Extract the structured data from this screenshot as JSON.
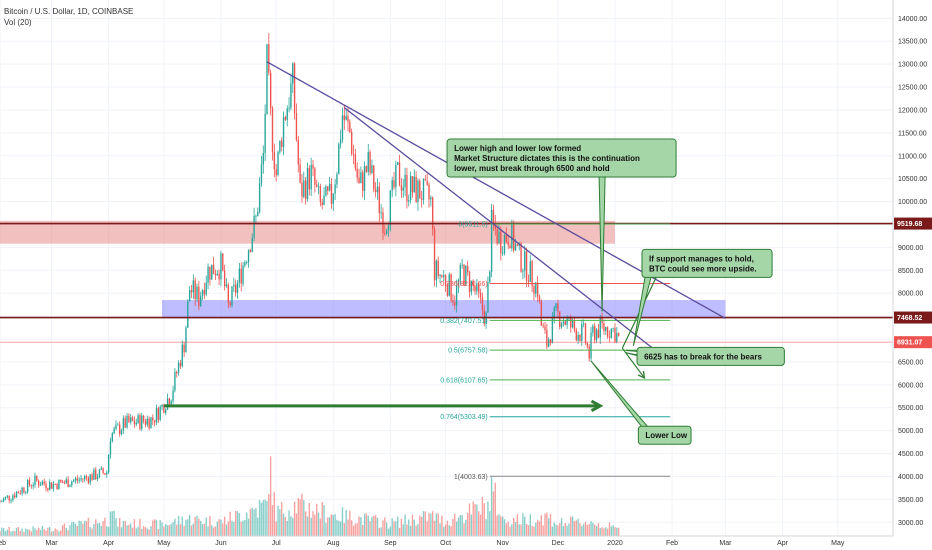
{
  "header": {
    "title": "Bitcoin / U.S. Dollar, 1D, COINBASE",
    "volume_label": "Vol (20)"
  },
  "colors": {
    "up": "#26a69a",
    "down": "#ef5350",
    "resistance_zone": "#e57373",
    "support_zone": "#7b7bff",
    "level_line": "#7b1a1a",
    "trendline": "#5b4a9e",
    "annotation_green": "#2e7d32",
    "note_fill": "#a5d6a7",
    "fib_line": "#4caf50",
    "fib_text": "#26a69a",
    "grid": "#f0f3fa"
  },
  "chart_data": {
    "type": "candlestick",
    "y_axis": {
      "range": [
        2700,
        14400
      ],
      "ticks": [
        3000,
        3500,
        4000,
        4500,
        5000,
        5500,
        6000,
        6500,
        7000,
        7500,
        8000,
        8500,
        9000,
        9500,
        10000,
        10500,
        11000,
        11500,
        12000,
        12500,
        13000,
        13500,
        14000
      ],
      "tick_labels": [
        "3000.00",
        "3500.00",
        "4000.00",
        "4500.00",
        "5000.00",
        "5500.00",
        "6000.00",
        "6500.00",
        "7000.00",
        "7500.00",
        "8000.00",
        "8500.00",
        "9000.00",
        "9500.00",
        "10000.00",
        "10500.00",
        "11000.00",
        "11500.00",
        "12000.00",
        "12500.00",
        "13000.00",
        "13500.00",
        "14000.00"
      ]
    },
    "x_axis": {
      "start": "2019-02-01",
      "end": "2020-05-31",
      "labels": [
        {
          "label": "Feb",
          "date": "2019-02-01"
        },
        {
          "label": "Mar",
          "date": "2019-03-01"
        },
        {
          "label": "Apr",
          "date": "2019-04-01"
        },
        {
          "label": "May",
          "date": "2019-05-01"
        },
        {
          "label": "Jun",
          "date": "2019-06-01"
        },
        {
          "label": "Jul",
          "date": "2019-07-01"
        },
        {
          "label": "Aug",
          "date": "2019-08-01"
        },
        {
          "label": "Sep",
          "date": "2019-09-01"
        },
        {
          "label": "Oct",
          "date": "2019-10-01"
        },
        {
          "label": "Nov",
          "date": "2019-11-01"
        },
        {
          "label": "Dec",
          "date": "2019-12-01"
        },
        {
          "label": "2020",
          "date": "2020-01-01"
        },
        {
          "label": "Feb",
          "date": "2020-02-01"
        },
        {
          "label": "Mar",
          "date": "2020-03-01"
        },
        {
          "label": "Apr",
          "date": "2020-04-01"
        },
        {
          "label": "May",
          "date": "2020-05-01"
        }
      ]
    },
    "price_path": [
      [
        "2019-02-01",
        3450
      ],
      [
        "2019-02-10",
        3650
      ],
      [
        "2019-02-20",
        3900
      ],
      [
        "2019-03-01",
        3820
      ],
      [
        "2019-03-15",
        3920
      ],
      [
        "2019-03-31",
        4100
      ],
      [
        "2019-04-02",
        4900
      ],
      [
        "2019-04-10",
        5150
      ],
      [
        "2019-04-25",
        5250
      ],
      [
        "2019-05-05",
        5800
      ],
      [
        "2019-05-12",
        6900
      ],
      [
        "2019-05-15",
        8100
      ],
      [
        "2019-05-20",
        7900
      ],
      [
        "2019-05-25",
        8500
      ],
      [
        "2019-06-01",
        8600
      ],
      [
        "2019-06-05",
        7700
      ],
      [
        "2019-06-10",
        8200
      ],
      [
        "2019-06-15",
        8900
      ],
      [
        "2019-06-20",
        9600
      ],
      [
        "2019-06-24",
        11000
      ],
      [
        "2019-06-26",
        13000
      ],
      [
        "2019-06-28",
        11800
      ],
      [
        "2019-07-01",
        10600
      ],
      [
        "2019-07-05",
        11800
      ],
      [
        "2019-07-10",
        12600
      ],
      [
        "2019-07-14",
        10200
      ],
      [
        "2019-07-20",
        10600
      ],
      [
        "2019-07-25",
        9900
      ],
      [
        "2019-07-31",
        10100
      ],
      [
        "2019-08-03",
        10800
      ],
      [
        "2019-08-06",
        11900
      ],
      [
        "2019-08-10",
        11500
      ],
      [
        "2019-08-15",
        10300
      ],
      [
        "2019-08-20",
        10800
      ],
      [
        "2019-08-29",
        9500
      ],
      [
        "2019-09-05",
        10600
      ],
      [
        "2019-09-10",
        10300
      ],
      [
        "2019-09-18",
        10200
      ],
      [
        "2019-09-23",
        10000
      ],
      [
        "2019-09-25",
        8500
      ],
      [
        "2019-10-01",
        8300
      ],
      [
        "2019-10-06",
        7900
      ],
      [
        "2019-10-10",
        8500
      ],
      [
        "2019-10-17",
        8050
      ],
      [
        "2019-10-23",
        7450
      ],
      [
        "2019-10-25",
        8700
      ],
      [
        "2019-10-26",
        9500
      ],
      [
        "2019-10-31",
        9150
      ],
      [
        "2019-11-05",
        9300
      ],
      [
        "2019-11-10",
        8800
      ],
      [
        "2019-11-15",
        8500
      ],
      [
        "2019-11-20",
        8100
      ],
      [
        "2019-11-22",
        7300
      ],
      [
        "2019-11-25",
        6900
      ],
      [
        "2019-11-30",
        7550
      ],
      [
        "2019-12-05",
        7400
      ],
      [
        "2019-12-10",
        7200
      ],
      [
        "2019-12-15",
        7100
      ],
      [
        "2019-12-18",
        6650
      ],
      [
        "2019-12-20",
        7150
      ],
      [
        "2019-12-25",
        7250
      ],
      [
        "2019-12-31",
        7200
      ],
      [
        "2020-01-01",
        7150
      ],
      [
        "2020-01-03",
        7000
      ]
    ],
    "volume_range": [
      0,
      25000
    ],
    "volume_path": [
      [
        "2019-02-01",
        2200
      ],
      [
        "2019-03-01",
        2500
      ],
      [
        "2019-04-01",
        5500
      ],
      [
        "2019-04-02",
        15000
      ],
      [
        "2019-04-05",
        4500
      ],
      [
        "2019-05-01",
        4000
      ],
      [
        "2019-05-13",
        6000
      ],
      [
        "2019-06-01",
        5000
      ],
      [
        "2019-06-26",
        11000
      ],
      [
        "2019-06-27",
        24500
      ],
      [
        "2019-07-01",
        8000
      ],
      [
        "2019-07-12",
        11000
      ],
      [
        "2019-08-01",
        7500
      ],
      [
        "2019-09-01",
        4500
      ],
      [
        "2019-09-24",
        7000
      ],
      [
        "2019-10-01",
        5000
      ],
      [
        "2019-10-25",
        11000
      ],
      [
        "2019-10-26",
        17000
      ],
      [
        "2019-11-01",
        5500
      ],
      [
        "2019-11-20",
        6000
      ],
      [
        "2019-11-25",
        7000
      ],
      [
        "2019-12-01",
        4500
      ],
      [
        "2019-12-18",
        5000
      ],
      [
        "2020-01-03",
        2500
      ]
    ],
    "zones": [
      {
        "name": "resistance-zone",
        "y_low": 9080,
        "y_high": 9580,
        "from": "2019-02-01",
        "to": "2020-01-01"
      },
      {
        "name": "support-zone",
        "y_low": 7450,
        "y_high": 7850,
        "from": "2019-04-30",
        "to": "2020-03-01"
      }
    ],
    "levels": [
      {
        "name": "9519-level",
        "value": 9519.68,
        "label": "9519.68",
        "dashed": false
      },
      {
        "name": "7468-level",
        "value": 7468.52,
        "label": "7468.52",
        "dashed": false
      },
      {
        "name": "6931-level",
        "value": 6931.07,
        "label": "6931.07",
        "dashed": true
      }
    ],
    "fib_levels": [
      {
        "name": "fib-0",
        "label": "0(9511.5)",
        "value": 9511.5,
        "from": "2019-10-25",
        "to": "2020-01-31",
        "color": "#4caf50"
      },
      {
        "name": "fib-0236",
        "label": "0.236(8210.66)",
        "value": 8210.66,
        "from": "2019-10-25",
        "to": "2020-01-31",
        "color": "#ef5350"
      },
      {
        "name": "fib-0382",
        "label": "0.382(7407.51)",
        "value": 7407.51,
        "from": "2019-10-25",
        "to": "2020-01-31",
        "color": "#4caf50"
      },
      {
        "name": "fib-05",
        "label": "0.5(6757.58)",
        "value": 6757.58,
        "from": "2019-10-25",
        "to": "2020-01-31",
        "color": "#4caf50"
      },
      {
        "name": "fib-0618",
        "label": "0.618(6107.65)",
        "value": 6107.65,
        "from": "2019-10-25",
        "to": "2020-01-31",
        "color": "#4caf50"
      },
      {
        "name": "fib-0764",
        "label": "0.764(5303.49)",
        "value": 5303.49,
        "from": "2019-10-25",
        "to": "2020-01-31",
        "color": "#26a69a"
      },
      {
        "name": "fib-1",
        "label": "1(4003.63)",
        "value": 4003.63,
        "from": "2019-10-25",
        "to": "2020-01-31",
        "color": "#888888"
      }
    ],
    "trendlines": [
      {
        "name": "trendline-upper",
        "from": [
          "2019-06-26",
          13050
        ],
        "to": [
          "2020-03-01",
          7450
        ]
      },
      {
        "name": "trendline-lower",
        "from": [
          "2019-08-07",
          12050
        ],
        "to": [
          "2020-01-31",
          6500
        ]
      }
    ],
    "arrows": [
      {
        "name": "fractal-arrow",
        "from": [
          "2019-05-01",
          5540
        ],
        "to": [
          "2019-12-24",
          5540
        ],
        "head": true
      },
      {
        "name": "bounce-arrow-1",
        "from": [
          "2020-01-05",
          6800
        ],
        "to": [
          "2020-01-27",
          8650
        ],
        "head": true
      },
      {
        "name": "bounce-arrow-2",
        "from": [
          "2020-01-05",
          6800
        ],
        "to": [
          "2020-01-17",
          6150
        ],
        "head": true
      },
      {
        "name": "break-arrow",
        "from": [
          "2020-01-07",
          6750
        ],
        "to": [
          "2020-02-22",
          6620
        ],
        "head": false
      }
    ],
    "notes": [
      {
        "name": "note-lower-high",
        "lines": [
          "Lower high and lower low formed",
          "Market Structure dictates this is the continuation",
          "lower, must break through 6500 and hold"
        ],
        "box_date": "2019-12-03",
        "box_y": 10950,
        "pointer": [
          "2019-12-25",
          7600
        ]
      },
      {
        "name": "note-support",
        "lines": [
          "If support manages to hold,",
          "BTC could see more upside."
        ],
        "box_date": "2020-02-20",
        "box_y": 8650,
        "pointer": [
          "2020-01-11",
          6850
        ]
      },
      {
        "name": "note-6625",
        "lines": [
          "6625 has to break for the bears"
        ],
        "box_date": "2020-02-22",
        "box_y": 6620,
        "pointer": [
          "2020-01-07",
          6700
        ]
      },
      {
        "name": "note-lower-low",
        "lines": [
          "Lower Low"
        ],
        "box_date": "2020-01-28",
        "box_y": 4900,
        "pointer": [
          "2019-12-19",
          6520
        ]
      }
    ]
  }
}
